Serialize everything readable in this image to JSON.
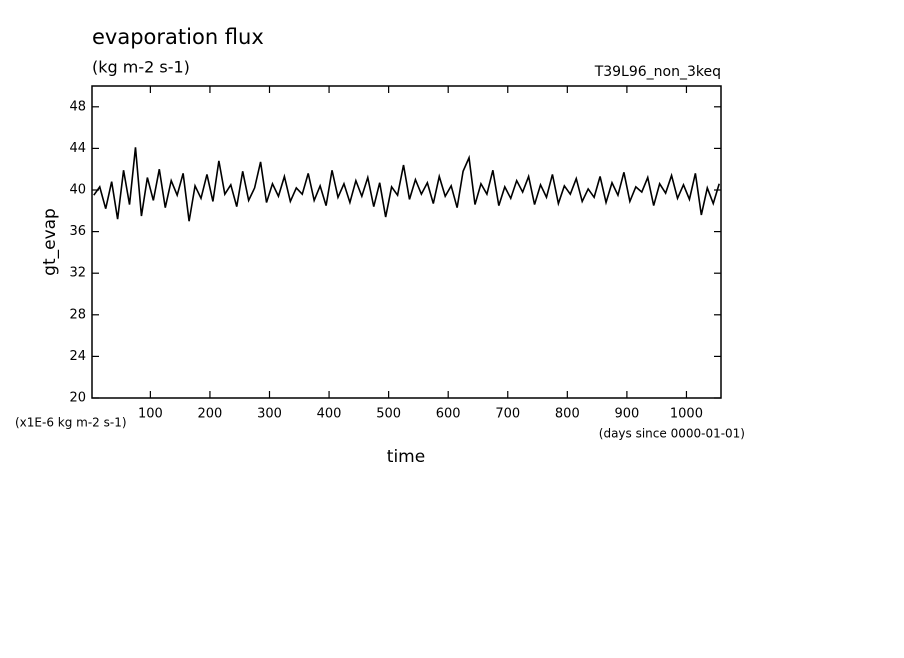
{
  "chart_data": {
    "type": "line",
    "title": "evaporation flux",
    "subtitle": "(kg m-2 s-1)",
    "annotation": "T39L96_non_3keq",
    "y_label": "gt_evap",
    "x_label": "time",
    "y_unit_note": "(x1E-6 kg m-2 s-1)",
    "x_unit_note": "(days since 0000-01-01)",
    "xlim": [
      2,
      1058
    ],
    "ylim": [
      20,
      50
    ],
    "xticks": [
      100,
      200,
      300,
      400,
      500,
      600,
      700,
      800,
      900,
      1000
    ],
    "yticks": [
      20,
      24,
      28,
      32,
      36,
      40,
      44,
      48
    ],
    "x": [
      5,
      15,
      25,
      35,
      45,
      55,
      65,
      75,
      85,
      95,
      105,
      115,
      125,
      135,
      145,
      155,
      165,
      175,
      185,
      195,
      205,
      215,
      225,
      235,
      245,
      255,
      265,
      275,
      285,
      295,
      305,
      315,
      325,
      335,
      345,
      355,
      365,
      375,
      385,
      395,
      405,
      415,
      425,
      435,
      445,
      455,
      465,
      475,
      485,
      495,
      505,
      515,
      525,
      535,
      545,
      555,
      565,
      575,
      585,
      595,
      605,
      615,
      625,
      635,
      645,
      655,
      665,
      675,
      685,
      695,
      705,
      715,
      725,
      735,
      745,
      755,
      765,
      775,
      785,
      795,
      805,
      815,
      825,
      835,
      845,
      855,
      865,
      875,
      885,
      895,
      905,
      915,
      925,
      935,
      945,
      955,
      965,
      975,
      985,
      995,
      1005,
      1015,
      1025,
      1035,
      1045,
      1055
    ],
    "series": [
      {
        "color": "#000000",
        "values": [
          39.5,
          40.3,
          38.2,
          40.8,
          37.2,
          41.9,
          38.6,
          44.1,
          37.5,
          41.2,
          39.0,
          42.0,
          38.3,
          40.9,
          39.5,
          41.6,
          37.0,
          40.4,
          39.2,
          41.5,
          38.9,
          42.8,
          39.6,
          40.5,
          38.4,
          41.8,
          39.0,
          40.2,
          42.7,
          38.8,
          40.6,
          39.4,
          41.3,
          38.9,
          40.2,
          39.6,
          41.6,
          39.0,
          40.4,
          38.5,
          41.9,
          39.3,
          40.6,
          38.8,
          40.9,
          39.4,
          41.2,
          38.4,
          40.7,
          37.4,
          40.3,
          39.5,
          42.4,
          39.1,
          41.0,
          39.6,
          40.7,
          38.7,
          41.3,
          39.4,
          40.4,
          38.3,
          41.8,
          43.1,
          38.6,
          40.6,
          39.6,
          41.9,
          38.5,
          40.3,
          39.2,
          40.9,
          39.8,
          41.3,
          38.6,
          40.5,
          39.3,
          41.5,
          38.7,
          40.4,
          39.6,
          41.1,
          38.9,
          40.1,
          39.3,
          41.3,
          38.8,
          40.7,
          39.5,
          41.7,
          38.9,
          40.3,
          39.8,
          41.2,
          38.5,
          40.6,
          39.7,
          41.4,
          39.2,
          40.5,
          39.1,
          41.6,
          37.6,
          40.2,
          38.7,
          40.6
        ]
      }
    ]
  }
}
